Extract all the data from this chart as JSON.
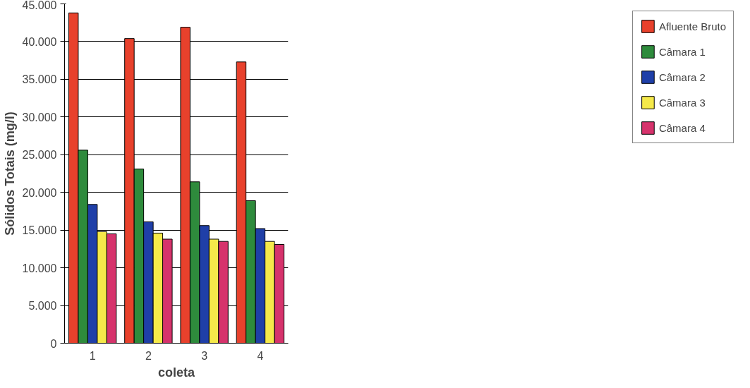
{
  "chart_data": {
    "type": "bar",
    "xlabel": "coleta",
    "ylabel": "Sólidos Totais (mg/l)",
    "categories": [
      "1",
      "2",
      "3",
      "4"
    ],
    "series": [
      {
        "name": "Afluente Bruto",
        "color": "#e8412c",
        "values": [
          43800,
          40400,
          41900,
          37300
        ]
      },
      {
        "name": "Câmara 1",
        "color": "#2e8b3c",
        "values": [
          25600,
          23100,
          21400,
          18900
        ]
      },
      {
        "name": "Câmara 2",
        "color": "#1f3fa8",
        "values": [
          18400,
          16100,
          15600,
          15200
        ]
      },
      {
        "name": "Câmara 3",
        "color": "#f5e94a",
        "values": [
          14800,
          14600,
          13800,
          13500
        ]
      },
      {
        "name": "Câmara 4",
        "color": "#d6336c",
        "values": [
          14500,
          13800,
          13500,
          13100
        ]
      }
    ],
    "ylim": [
      0,
      45000
    ],
    "yticks": [
      {
        "value": 0,
        "label": "0"
      },
      {
        "value": 5000,
        "label": "5.000"
      },
      {
        "value": 10000,
        "label": "10.000"
      },
      {
        "value": 15000,
        "label": "15.000"
      },
      {
        "value": 20000,
        "label": "20.000"
      },
      {
        "value": 25000,
        "label": "25.000"
      },
      {
        "value": 30000,
        "label": "30.000"
      },
      {
        "value": 35000,
        "label": "35.000"
      },
      {
        "value": 40000,
        "label": "40.000"
      },
      {
        "value": 45000,
        "label": "45.000"
      }
    ],
    "grid": "y",
    "legend": "right"
  }
}
